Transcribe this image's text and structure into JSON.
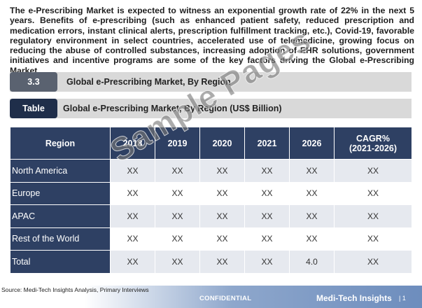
{
  "intro_text": "The e-Prescribing Market is expected to witness an exponential growth rate of 22% in the next 5 years. Benefits of e-prescribing (such as enhanced patient safety, reduced prescription and medication errors, instant clinical alerts, prescription fulfillment tracking, etc.), Covid-19, favorable regulatory environment in select countries, accelerated use of telemedicine, growing focus on reducing the abuse of controlled substances, increasing adoption of EHR solutions, government initiatives and incentive programs are some of the key factors driving the Global e-Prescribing Market",
  "section": {
    "number": "3.3",
    "title": "Global e-Prescribing Market, By Region"
  },
  "table_caption": {
    "tag": "Table",
    "title": "Global e-Prescribing Market, By Region (US$ Billion)"
  },
  "table": {
    "headers": [
      "Region",
      "2018",
      "2019",
      "2020",
      "2021",
      "2026",
      "CAGR%",
      "(2021-2026)"
    ],
    "rows": [
      {
        "region": "North America",
        "values": [
          "XX",
          "XX",
          "XX",
          "XX",
          "XX",
          "XX"
        ]
      },
      {
        "region": "Europe",
        "values": [
          "XX",
          "XX",
          "XX",
          "XX",
          "XX",
          "XX"
        ]
      },
      {
        "region": "APAC",
        "values": [
          "XX",
          "XX",
          "XX",
          "XX",
          "XX",
          "XX"
        ]
      },
      {
        "region": "Rest of the World",
        "values": [
          "XX",
          "XX",
          "XX",
          "XX",
          "XX",
          "XX"
        ]
      },
      {
        "region": "Total",
        "values": [
          "XX",
          "XX",
          "XX",
          "XX",
          "4.0",
          "XX"
        ]
      }
    ]
  },
  "watermark": "Sample Pages",
  "footer": {
    "source": "Source: Medi-Tech Insights Analysis, Primary Interviews",
    "confidential": "CONFIDENTIAL",
    "brand": "Medi-Tech Insights",
    "page": "| 1"
  }
}
